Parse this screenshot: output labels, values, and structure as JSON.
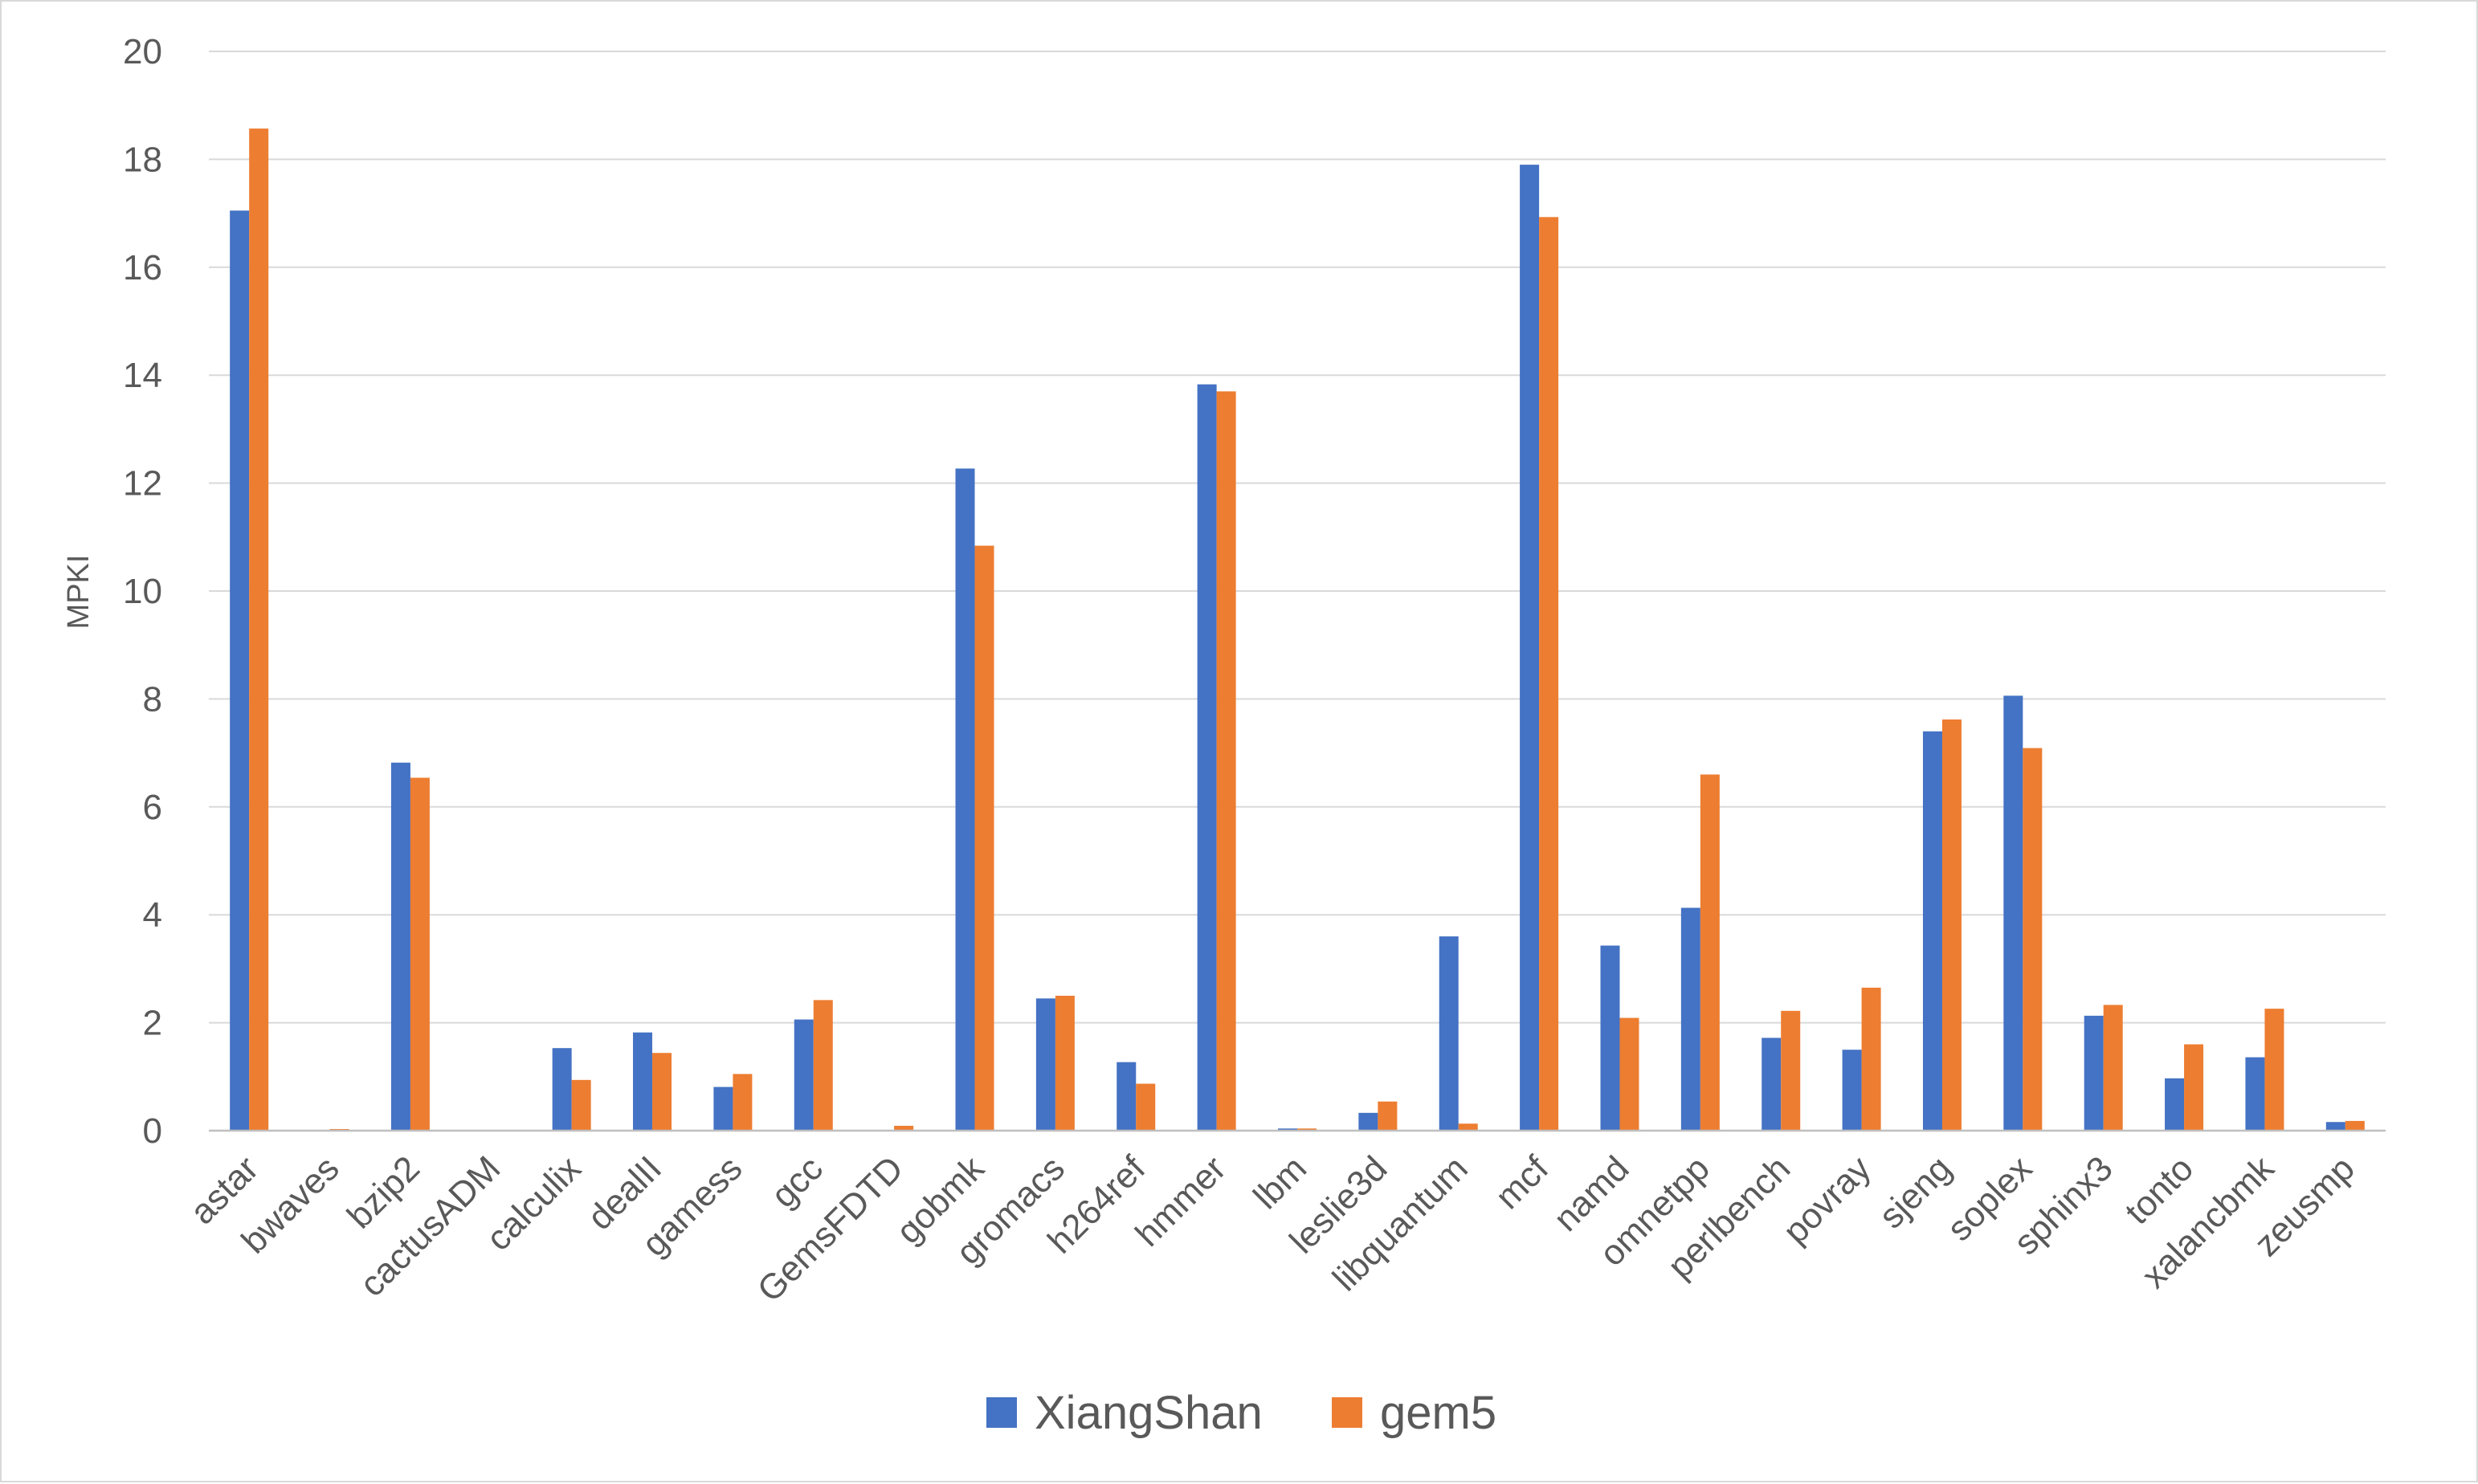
{
  "chart_data": {
    "type": "bar",
    "title": "",
    "xlabel": "",
    "ylabel": "MPKI",
    "ylim": [
      0,
      20
    ],
    "yticks": [
      0,
      2,
      4,
      6,
      8,
      10,
      12,
      14,
      16,
      18,
      20
    ],
    "grid": true,
    "legend_position": "bottom",
    "categories": [
      "astar",
      "bwaves",
      "bzip2",
      "cactusADM",
      "calculix",
      "dealII",
      "gamess",
      "gcc",
      "GemsFDTD",
      "gobmk",
      "gromacs",
      "h264ref",
      "hmmer",
      "lbm",
      "leslie3d",
      "libquantum",
      "mcf",
      "namd",
      "omnetpp",
      "perlbench",
      "povray",
      "sjeng",
      "soplex",
      "sphinx3",
      "tonto",
      "xalancbmk",
      "zeusmp"
    ],
    "series": [
      {
        "name": "XiangShan",
        "color": "#4472c4",
        "values": [
          17.05,
          0.0,
          6.82,
          0.0,
          1.53,
          1.82,
          0.81,
          2.06,
          0.0,
          12.27,
          2.45,
          1.27,
          13.83,
          0.04,
          0.33,
          3.6,
          17.9,
          3.43,
          4.13,
          1.72,
          1.5,
          7.4,
          8.06,
          2.13,
          0.97,
          1.36,
          0.16
        ]
      },
      {
        "name": "gem5",
        "color": "#ed7d31",
        "values": [
          18.57,
          0.03,
          6.54,
          0.0,
          0.94,
          1.44,
          1.05,
          2.42,
          0.09,
          10.84,
          2.5,
          0.87,
          13.7,
          0.04,
          0.54,
          0.13,
          16.93,
          2.09,
          6.6,
          2.22,
          2.65,
          7.62,
          7.09,
          2.33,
          1.6,
          2.26,
          0.18
        ]
      }
    ]
  }
}
